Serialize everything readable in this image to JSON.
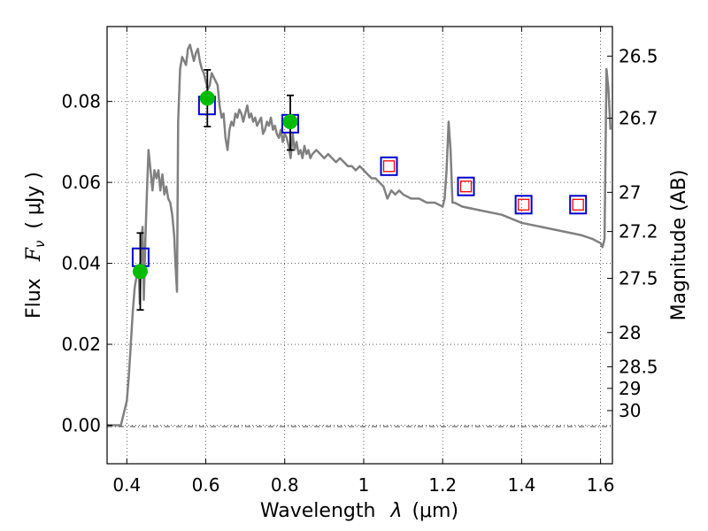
{
  "chart_data": {
    "type": "line",
    "xlabel_text": "Wavelength",
    "xlabel_symbol": "λ",
    "xlabel_unit": "(μm)",
    "ylabel_text": "Flux",
    "ylabel_symbol_main": "F",
    "ylabel_symbol_sub": "ν",
    "ylabel_unit": "( μJy )",
    "y2label": "Magnitude (AB)",
    "xlim": [
      0.35,
      1.63
    ],
    "ylim": [
      -0.0095,
      0.0985
    ],
    "x_ticks": [
      0.4,
      0.6,
      0.8,
      1.0,
      1.2,
      1.4,
      1.6
    ],
    "x_tick_labels": [
      "0.4",
      "0.6",
      "0.8",
      "1",
      "1.2",
      "1.4",
      "1.6"
    ],
    "y_ticks": [
      0.0,
      0.02,
      0.04,
      0.06,
      0.08
    ],
    "y_tick_labels": [
      "0.00",
      "0.02",
      "0.04",
      "0.06",
      "0.08"
    ],
    "y2_ticks": [
      "26.5",
      "26.7",
      "27",
      "27.2",
      "27.5",
      "28",
      "28.5",
      "29",
      "30"
    ],
    "grid": true,
    "colors": {
      "model": "#808080",
      "observed_points": "#00bb00",
      "errorbars": "#000000",
      "filter_box": "#0000cc",
      "model_photometry": "#ff0000"
    },
    "series": [
      {
        "type": "line",
        "x": [
          0.35,
          0.385,
          0.39,
          0.4,
          0.405,
          0.41,
          0.415,
          0.42,
          0.425,
          0.43,
          0.433,
          0.437,
          0.44,
          0.443,
          0.447,
          0.45,
          0.455,
          0.46,
          0.465,
          0.47,
          0.475,
          0.48,
          0.485,
          0.49,
          0.495,
          0.5,
          0.505,
          0.51,
          0.515,
          0.52,
          0.523,
          0.527,
          0.53,
          0.535,
          0.54,
          0.545,
          0.55,
          0.555,
          0.56,
          0.565,
          0.57,
          0.575,
          0.58,
          0.585,
          0.59,
          0.595,
          0.6,
          0.605,
          0.61,
          0.615,
          0.62,
          0.625,
          0.63,
          0.635,
          0.64,
          0.645,
          0.65,
          0.655,
          0.66,
          0.665,
          0.67,
          0.675,
          0.68,
          0.685,
          0.69,
          0.695,
          0.7,
          0.705,
          0.71,
          0.715,
          0.72,
          0.725,
          0.73,
          0.735,
          0.74,
          0.745,
          0.75,
          0.755,
          0.76,
          0.765,
          0.77,
          0.775,
          0.78,
          0.785,
          0.79,
          0.795,
          0.8,
          0.805,
          0.81,
          0.815,
          0.82,
          0.825,
          0.83,
          0.835,
          0.84,
          0.845,
          0.85,
          0.855,
          0.86,
          0.865,
          0.87,
          0.88,
          0.89,
          0.9,
          0.91,
          0.92,
          0.93,
          0.94,
          0.95,
          0.96,
          0.97,
          0.98,
          0.99,
          1.0,
          1.01,
          1.02,
          1.03,
          1.04,
          1.05,
          1.06,
          1.07,
          1.08,
          1.09,
          1.1,
          1.12,
          1.14,
          1.16,
          1.18,
          1.2,
          1.205,
          1.21,
          1.215,
          1.22,
          1.225,
          1.23,
          1.25,
          1.3,
          1.35,
          1.4,
          1.45,
          1.5,
          1.55,
          1.58,
          1.6,
          1.605,
          1.61,
          1.615,
          1.62,
          1.625
        ],
        "y": [
          0.0,
          0.0,
          0.002,
          0.006,
          0.012,
          0.02,
          0.028,
          0.034,
          0.037,
          0.039,
          0.03,
          0.046,
          0.049,
          0.031,
          0.046,
          0.055,
          0.068,
          0.063,
          0.058,
          0.063,
          0.061,
          0.063,
          0.058,
          0.062,
          0.057,
          0.059,
          0.056,
          0.055,
          0.052,
          0.047,
          0.04,
          0.033,
          0.075,
          0.088,
          0.091,
          0.09,
          0.089,
          0.093,
          0.094,
          0.092,
          0.09,
          0.092,
          0.093,
          0.09,
          0.088,
          0.087,
          0.085,
          0.083,
          0.084,
          0.087,
          0.086,
          0.085,
          0.084,
          0.079,
          0.076,
          0.077,
          0.071,
          0.068,
          0.073,
          0.075,
          0.074,
          0.077,
          0.076,
          0.078,
          0.077,
          0.075,
          0.077,
          0.079,
          0.076,
          0.077,
          0.075,
          0.076,
          0.074,
          0.075,
          0.076,
          0.072,
          0.073,
          0.075,
          0.074,
          0.076,
          0.073,
          0.074,
          0.072,
          0.071,
          0.073,
          0.07,
          0.072,
          0.071,
          0.069,
          0.066,
          0.072,
          0.068,
          0.07,
          0.067,
          0.068,
          0.066,
          0.069,
          0.067,
          0.068,
          0.066,
          0.067,
          0.068,
          0.067,
          0.066,
          0.067,
          0.066,
          0.065,
          0.066,
          0.065,
          0.064,
          0.064,
          0.063,
          0.064,
          0.063,
          0.062,
          0.061,
          0.061,
          0.06,
          0.059,
          0.056,
          0.058,
          0.057,
          0.058,
          0.057,
          0.056,
          0.056,
          0.055,
          0.055,
          0.054,
          0.056,
          0.063,
          0.075,
          0.068,
          0.055,
          0.055,
          0.054,
          0.053,
          0.052,
          0.05,
          0.049,
          0.048,
          0.047,
          0.046,
          0.045,
          0.044,
          0.046,
          0.088,
          0.083,
          0.073
        ]
      },
      {
        "type": "filter_photometry",
        "x": [
          0.435,
          0.603,
          0.814,
          1.064,
          1.259,
          1.405,
          1.543
        ],
        "y": [
          0.0415,
          0.079,
          0.0745,
          0.064,
          0.059,
          0.0545,
          0.0545
        ]
      },
      {
        "type": "model_photometry",
        "x": [
          1.064,
          1.259,
          1.405,
          1.543
        ],
        "y": [
          0.064,
          0.059,
          0.0545,
          0.0545
        ]
      },
      {
        "type": "observed",
        "x": [
          0.434,
          0.604,
          0.814
        ],
        "y": [
          0.038,
          0.0808,
          0.075
        ],
        "yerr_low": [
          0.0095,
          0.007,
          0.007
        ],
        "yerr_high": [
          0.0095,
          0.007,
          0.0065
        ]
      }
    ]
  }
}
